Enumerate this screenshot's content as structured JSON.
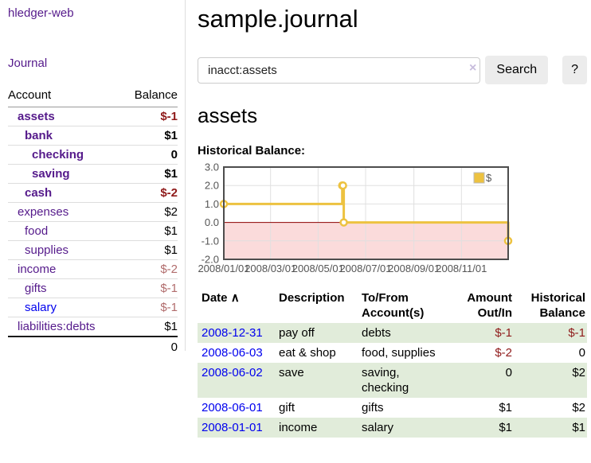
{
  "colors": {
    "link_purple": "#551a8b",
    "link_blue": "#0000ee",
    "negative_strong": "#8f1a1a",
    "negative_dim": "#b16c6c",
    "row_green": "#e1ecda",
    "chart_series": "#edc240",
    "chart_negative_fill": "#fbdbdb",
    "chart_zero_line": "#8b0000",
    "axis_text": "#545454"
  },
  "sidebar": {
    "app_title": "hledger-web",
    "nav": {
      "journal": "Journal"
    },
    "accounts": {
      "header_account": "Account",
      "header_balance": "Balance",
      "rows": [
        {
          "name": "assets",
          "balance": "$-1",
          "indent": 0,
          "in_query": true
        },
        {
          "name": "bank",
          "balance": "$1",
          "indent": 1,
          "in_query": true
        },
        {
          "name": "checking",
          "balance": "0",
          "indent": 2,
          "in_query": true
        },
        {
          "name": "saving",
          "balance": "$1",
          "indent": 2,
          "in_query": true
        },
        {
          "name": "cash",
          "balance": "$-2",
          "indent": 1,
          "in_query": true
        },
        {
          "name": "expenses",
          "balance": "$2",
          "indent": 0,
          "in_query": false
        },
        {
          "name": "food",
          "balance": "$1",
          "indent": 1,
          "in_query": false
        },
        {
          "name": "supplies",
          "balance": "$1",
          "indent": 1,
          "in_query": false
        },
        {
          "name": "income",
          "balance": "$-2",
          "indent": 0,
          "in_query": false
        },
        {
          "name": "gifts",
          "balance": "$-1",
          "indent": 1,
          "in_query": false
        },
        {
          "name": "salary",
          "balance": "$-1",
          "indent": 1,
          "in_query": false,
          "link_color": "blue"
        },
        {
          "name": "liabilities:debts",
          "balance": "$1",
          "indent": 0,
          "in_query": false
        }
      ],
      "total": "0"
    }
  },
  "main": {
    "title": "sample.journal",
    "search": {
      "value": "inacct:assets",
      "clear_icon": "×",
      "search_button": "Search",
      "help_button": "?"
    },
    "account_heading": "assets",
    "chart_label": "Historical Balance:"
  },
  "chart_data": {
    "type": "line",
    "step": true,
    "title": "Historical Balance",
    "x_start": "2008-01-01",
    "x_span_days": 365,
    "ylim": [
      -2,
      3
    ],
    "y_ticks": [
      "3.0",
      "2.0",
      "1.0",
      "0.0",
      "-1.0",
      "-2.0"
    ],
    "x_ticks": [
      {
        "label": "2008/01/01",
        "date": "2008-01-01"
      },
      {
        "label": "2008/03/01",
        "date": "2008-03-01"
      },
      {
        "label": "2008/05/01",
        "date": "2008-05-01"
      },
      {
        "label": "2008/07/01",
        "date": "2008-07-01"
      },
      {
        "label": "2008/09/01",
        "date": "2008-09-01"
      },
      {
        "label": "2008/11/01",
        "date": "2008-11-01"
      }
    ],
    "series": [
      {
        "name": "$",
        "color": "#edc240",
        "points": [
          {
            "date": "2008-01-01",
            "value": 1
          },
          {
            "date": "2008-06-01",
            "value": 2
          },
          {
            "date": "2008-06-02",
            "value": 2
          },
          {
            "date": "2008-06-03",
            "value": 0
          },
          {
            "date": "2008-12-31",
            "value": -1
          }
        ]
      }
    ],
    "legend": {
      "label": "$",
      "position": "top-right"
    },
    "grid": true
  },
  "register": {
    "headers": {
      "date": "Date",
      "description": "Description",
      "accounts": "To/From Account(s)",
      "amount": "Amount Out/In",
      "balance": "Historical Balance"
    },
    "sort_icon": "∧",
    "rows": [
      {
        "date": "2008-12-31",
        "description": "pay off",
        "accounts": "debts",
        "amount": "$-1",
        "balance": "$-1"
      },
      {
        "date": "2008-06-03",
        "description": "eat & shop",
        "accounts": "food, supplies",
        "amount": "$-2",
        "balance": "0"
      },
      {
        "date": "2008-06-02",
        "description": "save",
        "accounts": "saving, checking",
        "amount": "0",
        "balance": "$2"
      },
      {
        "date": "2008-06-01",
        "description": "gift",
        "accounts": "gifts",
        "amount": "$1",
        "balance": "$2"
      },
      {
        "date": "2008-01-01",
        "description": "income",
        "accounts": "salary",
        "amount": "$1",
        "balance": "$1"
      }
    ]
  }
}
